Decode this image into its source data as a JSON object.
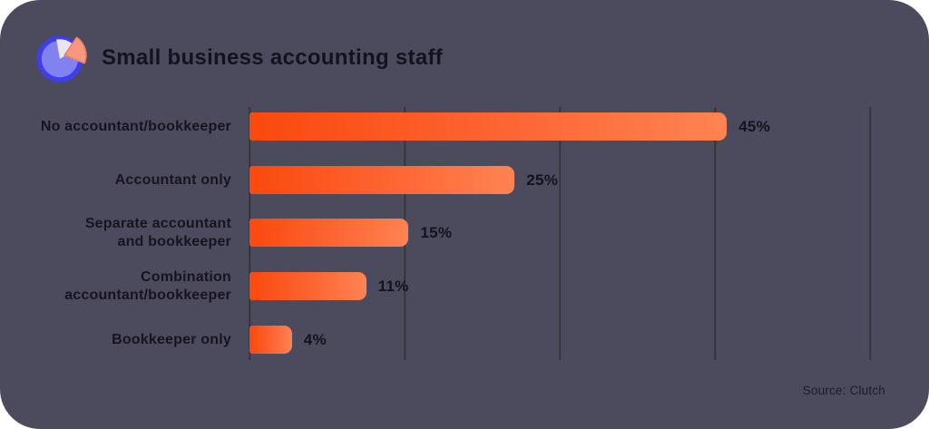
{
  "header": {
    "title": "Small business accounting staff",
    "icon": "pie-chart-icon"
  },
  "footer": {
    "source_label": "Source: Clutch"
  },
  "colors": {
    "card_background": "#4c4b5e",
    "bar_gradient_start": "#fa490e",
    "bar_gradient_end": "#ff8352",
    "gridline": "#35343f",
    "text": "#14121d",
    "icon_circle_fill": "#8181ef",
    "icon_circle_ring": "#3d3df1",
    "icon_slice_white": "#e9e6f0",
    "icon_slice_salmon": "#f5987e"
  },
  "chart_data": {
    "type": "bar",
    "orientation": "horizontal",
    "title": "Small business accounting staff",
    "xlabel": "",
    "ylabel": "",
    "xlim": [
      0,
      60
    ],
    "grid": "vertical",
    "legend": "none",
    "source": "Source: Clutch",
    "categories": [
      "No accountant/bookkeeper",
      "Accountant only",
      "Separate accountant and bookkeeper",
      "Combination accountant/bookkeeper",
      "Bookkeeper only"
    ],
    "values": [
      45,
      25,
      15,
      11,
      4
    ],
    "rows": [
      {
        "label": "No accountant/bookkeeper",
        "value": 45,
        "value_label": "45%"
      },
      {
        "label": "Accountant only",
        "value": 25,
        "value_label": "25%"
      },
      {
        "label": "Separate accountant\nand bookkeeper",
        "value": 15,
        "value_label": "15%"
      },
      {
        "label": "Combination\naccountant/bookkeeper",
        "value": 11,
        "value_label": "11%"
      },
      {
        "label": "Bookkeeper only",
        "value": 4,
        "value_label": "4%"
      }
    ]
  }
}
